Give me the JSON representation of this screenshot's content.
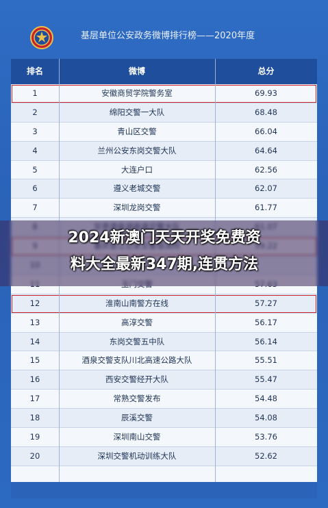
{
  "header": {
    "title": "基层单位公安政务微博排行榜——2020年度"
  },
  "table": {
    "columns": [
      "排名",
      "微博",
      "总分"
    ],
    "rows": [
      {
        "rank": "1",
        "name": "安徽商贸学院警务室",
        "score": "69.93",
        "highlight": true
      },
      {
        "rank": "2",
        "name": "绵阳交警一大队",
        "score": "68.48",
        "highlight": false
      },
      {
        "rank": "3",
        "name": "青山区交警",
        "score": "66.04",
        "highlight": false
      },
      {
        "rank": "4",
        "name": "兰州公安东岗交警大队",
        "score": "64.64",
        "highlight": false
      },
      {
        "rank": "5",
        "name": "大连户口",
        "score": "62.56",
        "highlight": false
      },
      {
        "rank": "6",
        "name": "遵义老城交警",
        "score": "62.07",
        "highlight": false
      },
      {
        "rank": "7",
        "name": "深圳龙岗交警",
        "score": "61.77",
        "highlight": false
      },
      {
        "rank": "8",
        "name": "甘肃酒泉湖高速交警大队",
        "score": "61.07",
        "highlight": false
      },
      {
        "rank": "9",
        "name": "重庆垫江公安交警淑滨所",
        "score": "59.22",
        "highlight": true
      },
      {
        "rank": "10",
        "name": "",
        "score": "",
        "highlight": false
      },
      {
        "rank": "11",
        "name": "玉门交警",
        "score": "57.63",
        "highlight": false
      },
      {
        "rank": "12",
        "name": "淮南山南警方在线",
        "score": "57.27",
        "highlight": true
      },
      {
        "rank": "13",
        "name": "高淳交警",
        "score": "56.17",
        "highlight": false
      },
      {
        "rank": "14",
        "name": "东岗交警五中队",
        "score": "56.14",
        "highlight": false
      },
      {
        "rank": "15",
        "name": "酒泉交警支队川北高速公路大队",
        "score": "55.51",
        "highlight": false
      },
      {
        "rank": "16",
        "name": "西安交警经开大队",
        "score": "55.47",
        "highlight": false
      },
      {
        "rank": "17",
        "name": "常熟交警发布",
        "score": "54.48",
        "highlight": false
      },
      {
        "rank": "18",
        "name": "辰溪交警",
        "score": "54.08",
        "highlight": false
      },
      {
        "rank": "19",
        "name": "深圳南山交警",
        "score": "53.76",
        "highlight": false
      },
      {
        "rank": "20",
        "name": "深圳交警机动训练大队",
        "score": "52.62",
        "highlight": false
      }
    ]
  },
  "banner": {
    "line1": "2024新澳门天天开奖免费资",
    "line2": "料大全最新347期,连贯方法"
  },
  "colors": {
    "background": "#2a63b8",
    "header_row": "#1f4f9c",
    "highlight_border": "#c8222a"
  },
  "icons": {
    "emblem": "police-emblem-icon"
  }
}
